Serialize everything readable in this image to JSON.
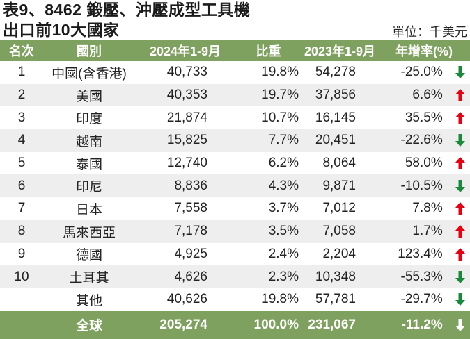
{
  "title": {
    "line1": "表9、8462 鍛壓、沖壓成型工具機",
    "line2": "出口前10大國家"
  },
  "unit": "單位：千美元",
  "colors": {
    "header_bg": "#7fa15f",
    "row_alt_bg": "#eeeeee",
    "up_arrow": "#e60012",
    "down_arrow": "#1a8a3a",
    "total_arrow": "#ffffff"
  },
  "table": {
    "headers": [
      "名次",
      "國別",
      "2024年1-9月",
      "比重",
      "2023年1-9月",
      "年增率(%)"
    ],
    "rows": [
      {
        "rank": "1",
        "country": "中國(含香港)",
        "v2024": "40,733",
        "share": "19.8%",
        "v2023": "54,278",
        "growth": "-25.0%",
        "trend": "down"
      },
      {
        "rank": "2",
        "country": "美國",
        "v2024": "40,353",
        "share": "19.7%",
        "v2023": "37,856",
        "growth": "6.6%",
        "trend": "up"
      },
      {
        "rank": "3",
        "country": "印度",
        "v2024": "21,874",
        "share": "10.7%",
        "v2023": "16,145",
        "growth": "35.5%",
        "trend": "up"
      },
      {
        "rank": "4",
        "country": "越南",
        "v2024": "15,825",
        "share": "7.7%",
        "v2023": "20,451",
        "growth": "-22.6%",
        "trend": "down"
      },
      {
        "rank": "5",
        "country": "泰國",
        "v2024": "12,740",
        "share": "6.2%",
        "v2023": "8,064",
        "growth": "58.0%",
        "trend": "up"
      },
      {
        "rank": "6",
        "country": "印尼",
        "v2024": "8,836",
        "share": "4.3%",
        "v2023": "9,871",
        "growth": "-10.5%",
        "trend": "down"
      },
      {
        "rank": "7",
        "country": "日本",
        "v2024": "7,558",
        "share": "3.7%",
        "v2023": "7,012",
        "growth": "7.8%",
        "trend": "up"
      },
      {
        "rank": "8",
        "country": "馬來西亞",
        "v2024": "7,178",
        "share": "3.5%",
        "v2023": "7,058",
        "growth": "1.7%",
        "trend": "up"
      },
      {
        "rank": "9",
        "country": "德國",
        "v2024": "4,925",
        "share": "2.4%",
        "v2023": "2,204",
        "growth": "123.4%",
        "trend": "up"
      },
      {
        "rank": "10",
        "country": "土耳其",
        "v2024": "4,626",
        "share": "2.3%",
        "v2023": "10,348",
        "growth": "-55.3%",
        "trend": "down"
      },
      {
        "rank": "",
        "country": "其他",
        "v2024": "40,626",
        "share": "19.8%",
        "v2023": "57,781",
        "growth": "-29.7%",
        "trend": "down"
      }
    ],
    "total": {
      "rank": "",
      "country": "全球",
      "v2024": "205,274",
      "share": "100.0%",
      "v2023": "231,067",
      "growth": "-11.2%",
      "trend": "down"
    }
  }
}
